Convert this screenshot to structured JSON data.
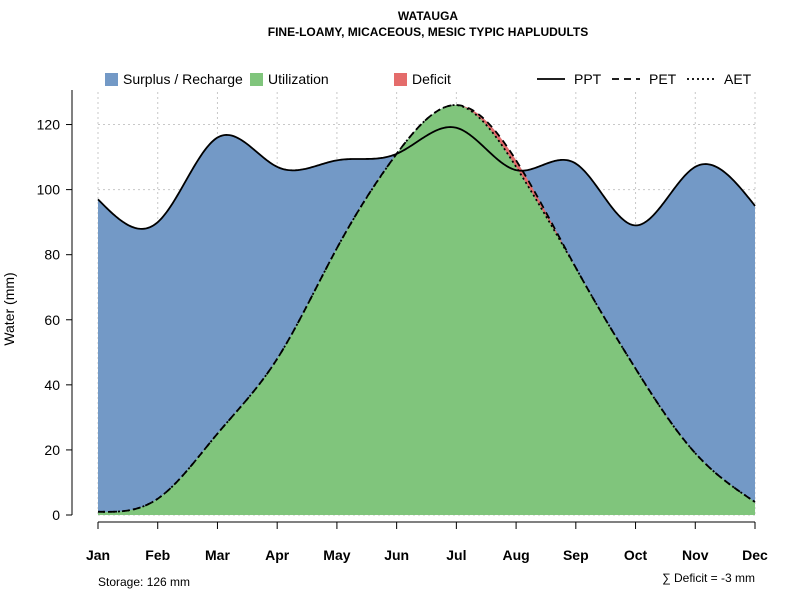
{
  "chart_data": {
    "type": "area",
    "title": "WATAUGA",
    "subtitle": "FINE-LOAMY, MICACEOUS, MESIC TYPIC HAPLUDULTS",
    "ylabel": "Water (mm)",
    "ylim": [
      0,
      130
    ],
    "yticks": [
      0,
      20,
      40,
      60,
      80,
      100,
      120
    ],
    "grid": true,
    "legend_placement": "top",
    "categories": [
      "Jan",
      "Feb",
      "Mar",
      "Apr",
      "May",
      "Jun",
      "Jul",
      "Aug",
      "Sep",
      "Oct",
      "Nov",
      "Dec"
    ],
    "series": [
      {
        "name": "PPT",
        "style": "solid",
        "values": [
          97,
          90,
          116,
          107,
          109,
          111,
          119,
          106,
          108,
          89,
          107,
          95
        ]
      },
      {
        "name": "PET",
        "style": "dashed",
        "values": [
          1,
          5,
          25,
          48,
          82,
          111,
          126,
          109,
          76,
          45,
          19,
          4
        ]
      },
      {
        "name": "AET",
        "style": "dotted",
        "values": [
          1,
          5,
          25,
          48,
          82,
          111,
          126,
          107,
          76,
          45,
          19,
          4
        ]
      }
    ],
    "areas": [
      {
        "name": "Surplus / Recharge",
        "color": "#7399c6"
      },
      {
        "name": "Utilization",
        "color": "#80c57c"
      },
      {
        "name": "Deficit",
        "color": "#e46c6b"
      }
    ],
    "notes": {
      "storage": "Storage: 126 mm",
      "deficit": "∑ Deficit = -3 mm"
    }
  }
}
